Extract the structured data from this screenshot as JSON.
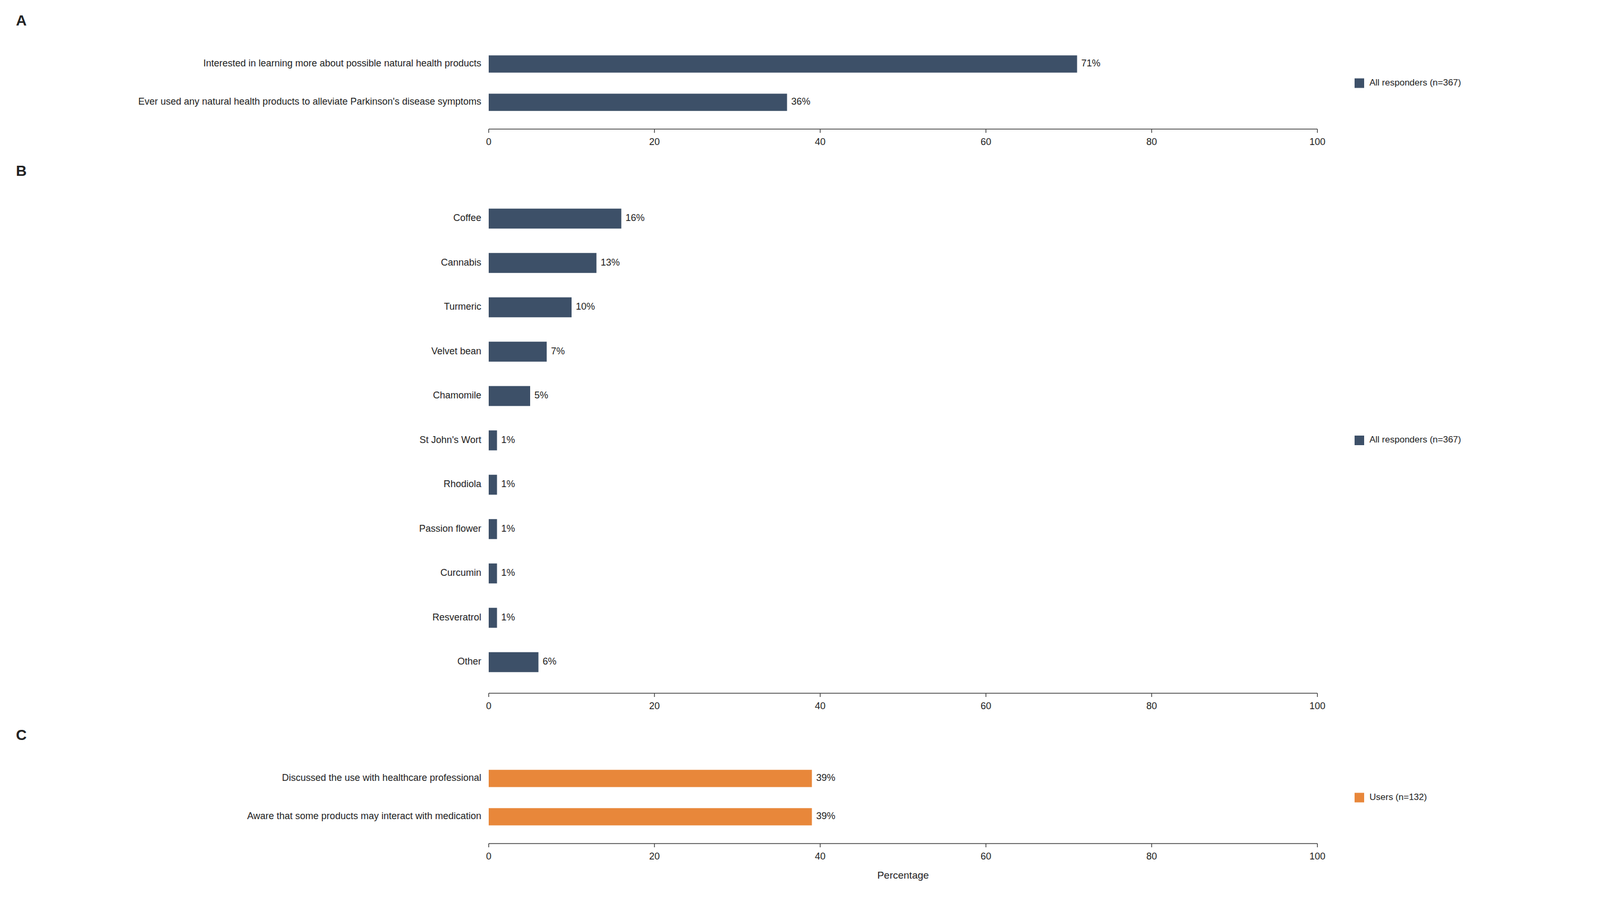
{
  "chart_data": [
    {
      "type": "bar",
      "orientation": "horizontal",
      "title": "A",
      "categories": [
        "Ever used any natural health products to alleviate Parkinson's disease symptoms",
        "Interested in learning more about possible natural health products"
      ],
      "series": [
        {
          "name": "All responders (n=367)",
          "color": "#3d5068",
          "values": [
            36,
            71
          ],
          "value_labels": [
            "36%",
            "71%"
          ]
        }
      ],
      "xlim": [
        0,
        100
      ],
      "xticks": [
        0,
        20,
        40,
        60,
        80,
        100
      ],
      "data_labels": true,
      "legend": "right",
      "grid": false
    },
    {
      "type": "bar",
      "orientation": "horizontal",
      "title": "B",
      "categories": [
        "Other",
        "Resveratrol",
        "Curcumin",
        "Passion flower",
        "Rhodiola",
        "St John's Wort",
        "Chamomile",
        "Velvet bean",
        "Turmeric",
        "Cannabis",
        "Coffee"
      ],
      "series": [
        {
          "name": "All responders (n=367)",
          "color": "#3d5068",
          "values": [
            6,
            1,
            1,
            1,
            1,
            1,
            5,
            7,
            10,
            13,
            16
          ],
          "value_labels": [
            "6%",
            "1%",
            "1%",
            "1%",
            "1%",
            "1%",
            "5%",
            "7%",
            "10%",
            "13%",
            "16%"
          ]
        }
      ],
      "xlim": [
        0,
        100
      ],
      "xticks": [
        0,
        20,
        40,
        60,
        80,
        100
      ],
      "data_labels": true,
      "legend": "right",
      "grid": false
    },
    {
      "type": "bar",
      "orientation": "horizontal",
      "title": "C",
      "categories": [
        "Aware that some products may interact with medication",
        "Discussed the use with healthcare professional"
      ],
      "series": [
        {
          "name": "Users (n=132)",
          "color": "#e8873a",
          "values": [
            39,
            39
          ],
          "value_labels": [
            "39%",
            "39%"
          ]
        }
      ],
      "xlim": [
        0,
        100
      ],
      "xticks": [
        0,
        20,
        40,
        60,
        80,
        100
      ],
      "xlabel": "Percentage",
      "data_labels": true,
      "legend": "right",
      "grid": false
    }
  ]
}
